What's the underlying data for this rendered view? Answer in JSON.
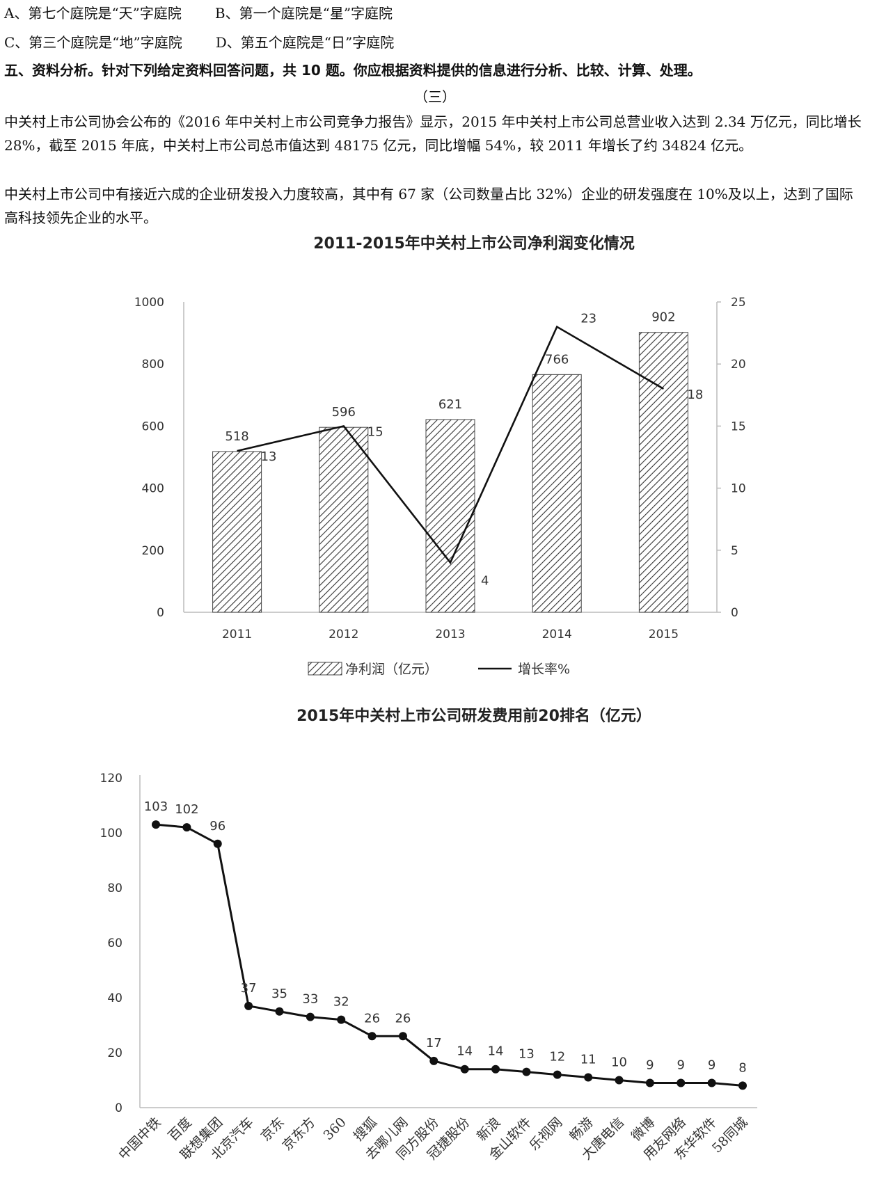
{
  "options": {
    "a": "A、第七个庭院是“天”字庭院",
    "b": "B、第一个庭院是“星”字庭院",
    "c": "C、第三个庭院是“地”字庭院",
    "d": "D、第五个庭院是“日”字庭院"
  },
  "section_heading": "五、资料分析。针对下列给定资料回答问题，共 10 题。你应根据资料提供的信息进行分析、比较、计算、处理。",
  "passage_number": "（三）",
  "paragraphs": [
    "中关村上市公司协会公布的《2016 年中关村上市公司竞争力报告》显示，2015 年中关村上市公司总营业收入达到 2.34 万亿元，同比增长 28%，截至 2015 年底，中关村上市公司总市值达到 48175 亿元，同比增幅 54%，较 2011 年增长了约 34824 亿元。",
    "中关村上市公司中有接近六成的企业研发投入力度较高，其中有 67 家（公司数量占比 32%）企业的研发强度在 10%及以上，达到了国际高科技领先企业的水平。"
  ],
  "chart_data": [
    {
      "type": "bar",
      "title": "2011-2015年中关村上市公司净利润变化情况",
      "categories": [
        "2011",
        "2012",
        "2013",
        "2014",
        "2015"
      ],
      "series": [
        {
          "name": "净利润（亿元）",
          "type": "bar",
          "axis": "left",
          "values": [
            518,
            596,
            621,
            766,
            902
          ]
        },
        {
          "name": "增长率%",
          "type": "line",
          "axis": "right",
          "values": [
            13,
            15,
            4,
            23,
            18
          ]
        }
      ],
      "ylim": [
        0,
        1000
      ],
      "yticks": [
        "0",
        "200",
        "400",
        "600",
        "800",
        "1000"
      ],
      "y2lim": [
        0,
        25
      ],
      "y2ticks": [
        "0",
        "5",
        "10",
        "15",
        "20",
        "25"
      ],
      "legend": "bottom",
      "grid": false,
      "bar_fill": "diagonal-hatch"
    },
    {
      "type": "line",
      "title": "2015年中关村上市公司研发费用前20排名（亿元）",
      "categories": [
        "中国中铁",
        "百度",
        "联想集团",
        "北京汽车",
        "京东",
        "京东方",
        "360",
        "搜狐",
        "去哪儿网",
        "同方股份",
        "冠捷股份",
        "新浪",
        "金山软件",
        "乐视网",
        "畅游",
        "大唐电信",
        "微博",
        "用友网络",
        "东华软件",
        "58同城"
      ],
      "values": [
        103,
        102,
        96,
        37,
        35,
        33,
        32,
        26,
        26,
        17,
        14,
        14,
        13,
        12,
        11,
        10,
        9,
        9,
        9,
        8
      ],
      "ylim": [
        0,
        120
      ],
      "yticks": [
        "0",
        "20",
        "40",
        "60",
        "80",
        "100",
        "120"
      ],
      "grid": false,
      "markers": true
    }
  ]
}
